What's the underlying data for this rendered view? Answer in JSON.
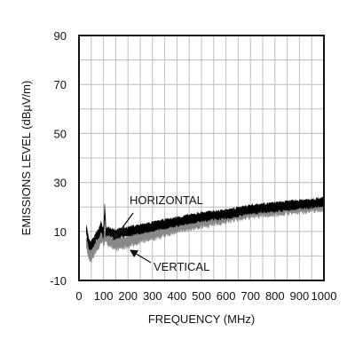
{
  "chart_data": {
    "type": "line",
    "xlabel": "FREQUENCY (MHz)",
    "ylabel": "EMISSIONS LEVEL (dBµV/m)",
    "xlim": [
      0,
      1000
    ],
    "ylim": [
      -10,
      90
    ],
    "x_ticks": [
      "0",
      "100",
      "200",
      "300",
      "400",
      "500",
      "600",
      "700",
      "800",
      "900",
      "1000"
    ],
    "y_ticks": [
      "-10",
      "10",
      "30",
      "50",
      "70",
      "90"
    ],
    "grid": true,
    "x_minor_step": 50,
    "y_minor_step": 10,
    "annotations": [
      {
        "text": "HORIZONTAL",
        "series": "horizontal"
      },
      {
        "text": "VERTICAL",
        "series": "vertical"
      }
    ],
    "series": [
      {
        "key": "horizontal",
        "color": "#000000",
        "x": [
          30,
          40,
          50,
          60,
          70,
          80,
          90,
          100,
          105,
          110,
          120,
          150,
          200,
          250,
          300,
          400,
          500,
          600,
          700,
          800,
          900,
          1000
        ],
        "y": [
          11,
          5,
          4,
          6,
          8,
          9,
          12,
          9,
          19,
          10,
          10,
          9,
          10,
          11,
          12,
          14,
          16,
          17,
          19,
          20,
          21,
          22
        ]
      },
      {
        "key": "vertical",
        "color": "#888888",
        "x": [
          30,
          40,
          50,
          60,
          70,
          80,
          90,
          100,
          110,
          120,
          150,
          200,
          250,
          300,
          400,
          500,
          600,
          700,
          800,
          900,
          1000
        ],
        "y": [
          6,
          1,
          0,
          2,
          4,
          5,
          8,
          7,
          8,
          7,
          5,
          6,
          8,
          9,
          12,
          14,
          16,
          18,
          19,
          20,
          21
        ]
      }
    ]
  }
}
